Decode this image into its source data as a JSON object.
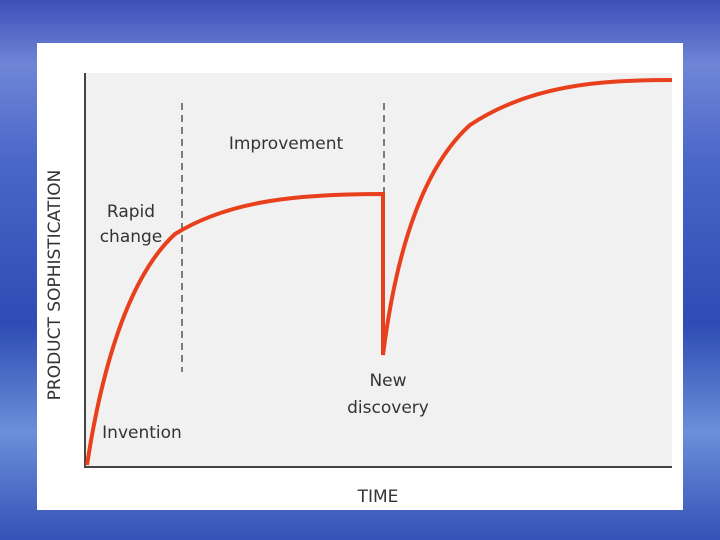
{
  "axes": {
    "y_label": "PRODUCT SOPHISTICATION",
    "x_label": "TIME"
  },
  "annotations": {
    "rapid_change": [
      "Rapid",
      "change"
    ],
    "improvement": "Improvement",
    "new_discovery": [
      "New",
      "discovery"
    ],
    "invention": "Invention"
  }
}
